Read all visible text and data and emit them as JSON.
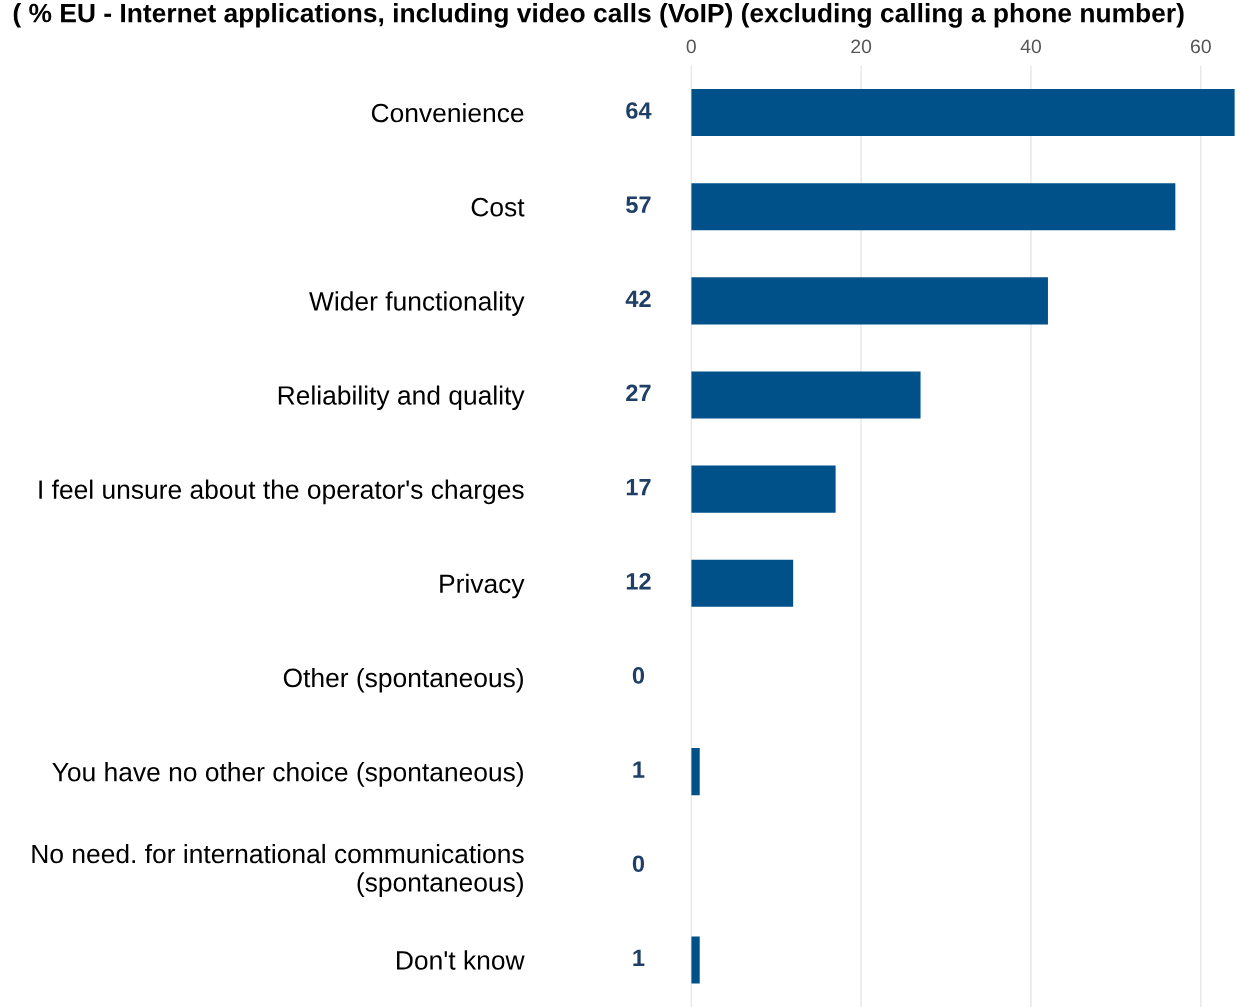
{
  "chart_data": {
    "type": "bar",
    "orientation": "horizontal",
    "title": "( % EU - Internet applications, including video calls (VoIP) (excluding calling a phone number)",
    "categories": [
      "Convenience",
      "Cost",
      "Wider functionality",
      "Reliability and quality",
      "I feel unsure about the operator's charges",
      "Privacy",
      "Other (spontaneous)",
      "You have no other choice (spontaneous)",
      "No need. for international communications\n(spontaneous)",
      "Don't know"
    ],
    "values": [
      64,
      57,
      42,
      27,
      17,
      12,
      0,
      1,
      0,
      1
    ],
    "color": "#00508a",
    "xlim": [
      0,
      64
    ],
    "xticks": [
      0,
      20,
      40,
      60
    ],
    "grid": "x",
    "data_labels": true
  }
}
